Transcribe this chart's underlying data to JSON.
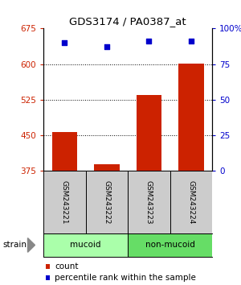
{
  "title": "GDS3174 / PA0387_at",
  "samples": [
    "GSM243221",
    "GSM243222",
    "GSM243223",
    "GSM243224"
  ],
  "bar_values": [
    457,
    390,
    535,
    601
  ],
  "percentile_values": [
    90,
    87,
    91,
    91
  ],
  "bar_color": "#cc2200",
  "dot_color": "#0000cc",
  "ylim_left": [
    375,
    675
  ],
  "ylim_right": [
    0,
    100
  ],
  "yticks_left": [
    375,
    450,
    525,
    600,
    675
  ],
  "yticks_right": [
    0,
    25,
    50,
    75,
    100
  ],
  "ytick_labels_right": [
    "0",
    "25",
    "50",
    "75",
    "100%"
  ],
  "grid_values": [
    450,
    525,
    600
  ],
  "groups": [
    {
      "label": "mucoid",
      "indices": [
        0,
        1
      ],
      "color": "#aaffaa"
    },
    {
      "label": "non-mucoid",
      "indices": [
        2,
        3
      ],
      "color": "#66dd66"
    }
  ],
  "strain_label": "strain",
  "legend_count_label": "count",
  "legend_pct_label": "percentile rank within the sample",
  "bar_width": 0.6,
  "label_bg_color": "#cccccc",
  "figsize": [
    3.0,
    3.54
  ],
  "dpi": 100
}
